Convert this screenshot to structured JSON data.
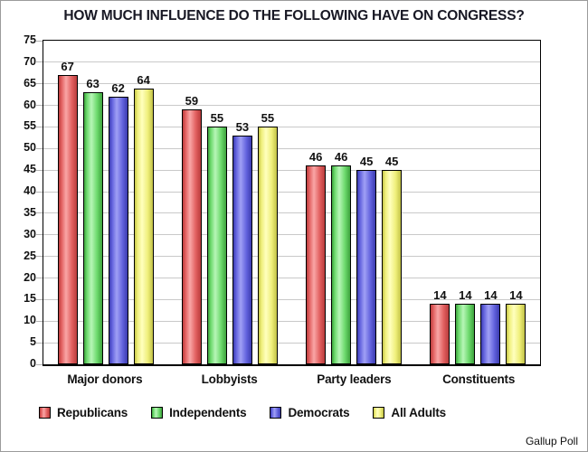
{
  "chart_data": {
    "type": "bar",
    "title": "HOW MUCH INFLUENCE DO THE FOLLOWING HAVE ON CONGRESS?",
    "source": "Gallup Poll",
    "categories": [
      "Major donors",
      "Lobbyists",
      "Party leaders",
      "Constituents"
    ],
    "series": [
      {
        "name": "Republicans",
        "values": [
          67,
          59,
          46,
          14
        ],
        "color": "#e26060",
        "color_edge": "#b93c3c",
        "color_light": "#f9a6a6"
      },
      {
        "name": "Independents",
        "values": [
          63,
          55,
          46,
          14
        ],
        "color": "#6cd96c",
        "color_edge": "#3da23d",
        "color_light": "#b7f6b7"
      },
      {
        "name": "Democrats",
        "values": [
          62,
          53,
          45,
          14
        ],
        "color": "#6363de",
        "color_edge": "#3b3baf",
        "color_light": "#a0a0f5"
      },
      {
        "name": "All Adults",
        "values": [
          64,
          55,
          45,
          14
        ],
        "color": "#efef7a",
        "color_edge": "#c2c247",
        "color_light": "#ffffbe"
      }
    ],
    "xlabel": "",
    "ylabel": "",
    "ylim": [
      0,
      75
    ],
    "ytick_step": 5,
    "grid": true,
    "value_labels": true,
    "legend_position": "bottom",
    "colors": {
      "grid": "#c9c9c9",
      "axis": "#000000",
      "title_text": "#181824",
      "background": "#ffffff",
      "frame_border": "#9b9b9b"
    }
  }
}
